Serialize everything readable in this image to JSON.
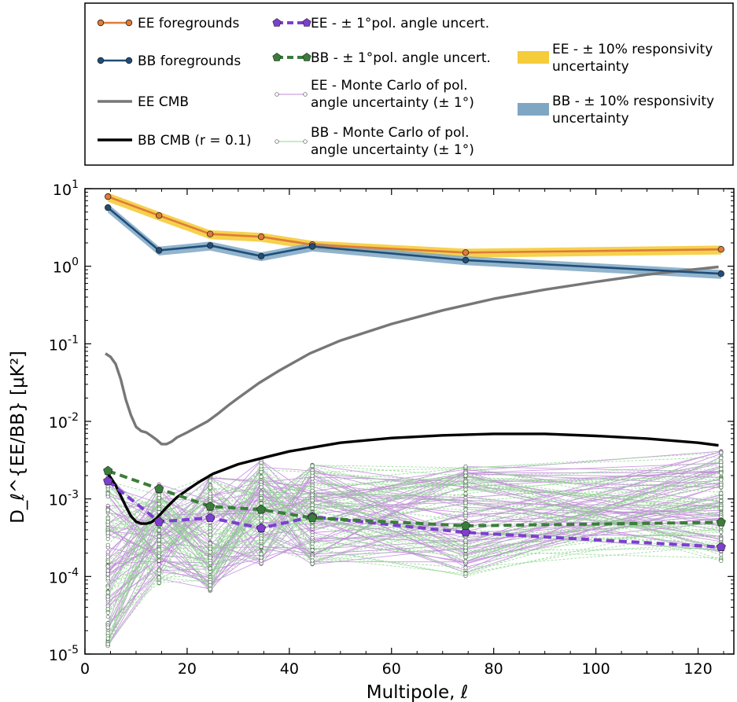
{
  "chart_data": {
    "type": "line",
    "y_scale": "log",
    "xlabel": "Multipole, ℓ",
    "ylabel": "D_ℓ^{EE/BB} [μK²]",
    "xlim": [
      0,
      127
    ],
    "ylim": [
      1e-05,
      10
    ],
    "x_ticks": [
      0,
      20,
      40,
      60,
      80,
      100,
      120
    ],
    "x_tick_labels": [
      "0",
      "20",
      "40",
      "60",
      "80",
      "100",
      "120"
    ],
    "y_ticks": [
      1e-05,
      0.0001,
      0.001,
      0.01,
      0.1,
      1,
      10
    ],
    "y_tick_labels": [
      {
        "base": "10",
        "exp": "-5"
      },
      {
        "base": "10",
        "exp": "-4"
      },
      {
        "base": "10",
        "exp": "-3"
      },
      {
        "base": "10",
        "exp": "-2"
      },
      {
        "base": "10",
        "exp": "-1"
      },
      {
        "base": "10",
        "exp": "0"
      },
      {
        "base": "10",
        "exp": "1"
      }
    ],
    "bins": [
      4.5,
      14.5,
      24.5,
      34.5,
      44.5,
      74.5,
      124.5
    ],
    "series": [
      {
        "name": "EE foregrounds",
        "values": [
          7.9,
          4.5,
          2.6,
          2.4,
          1.9,
          1.5,
          1.65
        ],
        "color": "#e07b39",
        "band_color": "#f5cc3a"
      },
      {
        "name": "BB foregrounds",
        "values": [
          5.7,
          1.6,
          1.85,
          1.35,
          1.8,
          1.2,
          0.8
        ],
        "color": "#1f4e79",
        "band_color": "#7fa7c4"
      },
      {
        "name": "EE - ± 1°pol. angle uncert.",
        "values": [
          0.0017,
          0.00051,
          0.00057,
          0.00042,
          0.00059,
          0.00037,
          0.00024
        ],
        "color": "#7c3fcf"
      },
      {
        "name": "BB - ± 1°pol. angle uncert.",
        "values": [
          0.0023,
          0.00135,
          0.0008,
          0.00073,
          0.00057,
          0.00045,
          0.0005
        ],
        "color": "#3a7d3a"
      }
    ],
    "ee_cmb": {
      "name": "EE CMB",
      "color": "#777777",
      "x": [
        4,
        5,
        6,
        7,
        8,
        9,
        10,
        11,
        12,
        13,
        14,
        15,
        16,
        17,
        18,
        20,
        22,
        24,
        26,
        28,
        30,
        34,
        38,
        44,
        50,
        60,
        70,
        80,
        90,
        100,
        110,
        120,
        124
      ],
      "y": [
        0.075,
        0.068,
        0.055,
        0.035,
        0.019,
        0.012,
        0.0085,
        0.0075,
        0.0072,
        0.0065,
        0.0058,
        0.0051,
        0.0051,
        0.0055,
        0.0062,
        0.0072,
        0.0085,
        0.01,
        0.0125,
        0.016,
        0.02,
        0.031,
        0.045,
        0.075,
        0.11,
        0.18,
        0.27,
        0.38,
        0.5,
        0.63,
        0.78,
        0.92,
        0.98
      ]
    },
    "bb_cmb": {
      "name": "BB CMB (r = 0.1)",
      "color": "#000000",
      "x": [
        4,
        5,
        6,
        7,
        8,
        9,
        10,
        11,
        12,
        13,
        14,
        15,
        16,
        18,
        20,
        22,
        25,
        30,
        35,
        40,
        50,
        60,
        70,
        80,
        90,
        100,
        110,
        120,
        124
      ],
      "y": [
        0.0023,
        0.0019,
        0.0015,
        0.0011,
        0.0008,
        0.0006,
        0.00051,
        0.00048,
        0.00048,
        0.0005,
        0.00056,
        0.00066,
        0.00078,
        0.00105,
        0.0013,
        0.0016,
        0.0021,
        0.0028,
        0.0034,
        0.0041,
        0.0053,
        0.0061,
        0.0066,
        0.0069,
        0.0069,
        0.0065,
        0.006,
        0.0053,
        0.0049
      ]
    },
    "monte_carlo": {
      "ee_name": "EE - Monte Carlo of pol. angle uncertainty (± 1°)",
      "bb_name": "BB - Monte Carlo of pol. angle uncertainty (± 1°)",
      "ee_color": "#c08ad8",
      "bb_color": "#8fd88f",
      "realizations": 60,
      "log10_range_by_bin": [
        [
          -4.9,
          -2.7
        ],
        [
          -4.1,
          -2.8
        ],
        [
          -4.2,
          -2.7
        ],
        [
          -3.85,
          -2.5
        ],
        [
          -3.85,
          -2.55
        ],
        [
          -4.0,
          -2.55
        ],
        [
          -3.8,
          -2.35
        ]
      ]
    },
    "legend": {
      "placement": "top",
      "entries": [
        {
          "label": "EE foregrounds",
          "style": "line-marker",
          "color": "#e07b39"
        },
        {
          "label": "BB foregrounds",
          "style": "line-marker",
          "color": "#1f4e79"
        },
        {
          "label": "EE CMB",
          "style": "line",
          "color": "#777777"
        },
        {
          "label": "BB CMB (r = 0.1)",
          "style": "line",
          "color": "#000000"
        },
        {
          "label": "EE - ± 1°pol. angle uncert.",
          "style": "dashed-pentagon",
          "color": "#7c3fcf"
        },
        {
          "label": "BB - ± 1°pol. angle uncert.",
          "style": "dashed-pentagon",
          "color": "#3a7d3a"
        },
        {
          "label_lines": [
            "EE - Monte Carlo of pol.",
            "angle uncertainty (± 1°)"
          ],
          "style": "thin-circles",
          "color": "#c08ad8"
        },
        {
          "label_lines": [
            "BB - Monte Carlo of pol.",
            "angle uncertainty (± 1°)"
          ],
          "style": "thin-circles",
          "color": "#8fd88f"
        },
        {
          "label_lines": [
            "EE - ± 10% responsivity",
            "uncertainty"
          ],
          "style": "band",
          "color": "#f5cc3a"
        },
        {
          "label_lines": [
            "BB - ± 10% responsivity",
            "uncertainty"
          ],
          "style": "band",
          "color": "#7fa7c4"
        }
      ]
    }
  }
}
